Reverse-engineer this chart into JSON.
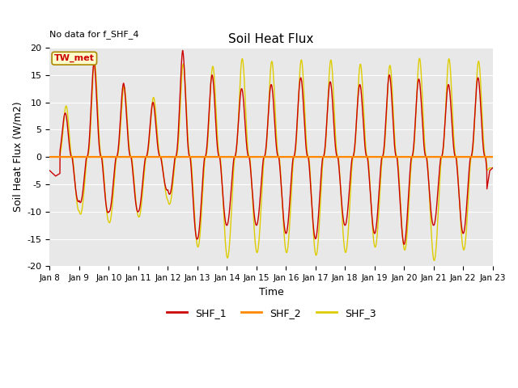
{
  "title": "Soil Heat Flux",
  "top_left_note": "No data for f_SHF_4",
  "ylabel": "Soil Heat Flux (W/m2)",
  "xlabel": "Time",
  "legend_label": "TW_met",
  "ylim": [
    -20,
    20
  ],
  "xtick_labels": [
    "Jan 8",
    "Jan 9",
    "Jan 10",
    "Jan 11",
    "Jan 12",
    "Jan 13",
    "Jan 14",
    "Jan 15",
    "Jan 16",
    "Jan 17",
    "Jan 18",
    "Jan 19",
    "Jan 20",
    "Jan 21",
    "Jan 22",
    "Jan 23"
  ],
  "colors": {
    "SHF_1": "#cc0000",
    "SHF_2": "#ff8800",
    "SHF_3": "#ddcc00",
    "zero_line": "#ff8800",
    "legend_box_edge": "#aa8800",
    "legend_box_fill": "#ffffcc",
    "legend_box_text": "#cc0000",
    "background": "#e8e8e8",
    "grid": "#ffffff"
  },
  "n_days": 15,
  "start_day": 8,
  "end_day": 23,
  "yticks": [
    -20,
    -15,
    -10,
    -5,
    0,
    5,
    10,
    15,
    20
  ],
  "figsize": [
    6.4,
    4.8
  ],
  "dpi": 100
}
